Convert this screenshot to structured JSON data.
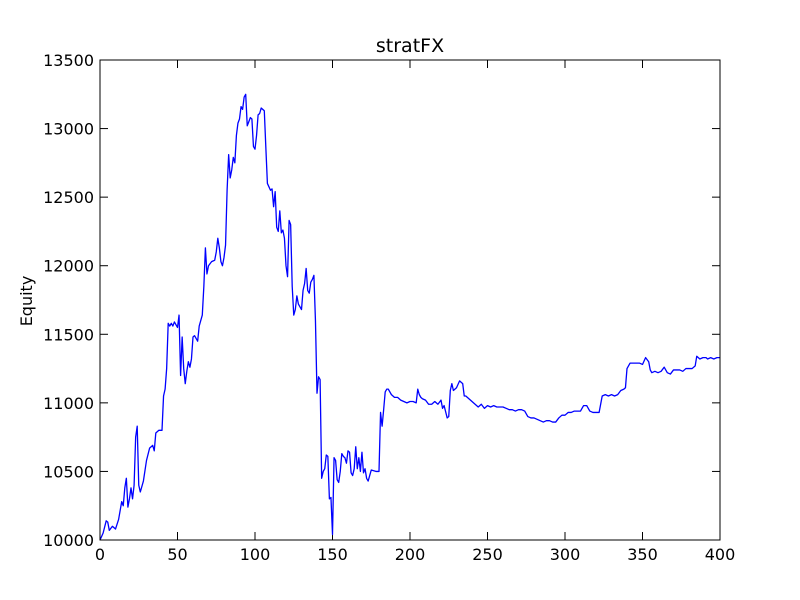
{
  "chart_data": {
    "type": "line",
    "title": "stratFX",
    "xlabel": "",
    "ylabel": "Equity",
    "xlim": [
      0,
      400
    ],
    "ylim": [
      10000,
      13500
    ],
    "grid": false,
    "x_ticks": [
      "0",
      "50",
      "100",
      "150",
      "200",
      "250",
      "300",
      "350",
      "400"
    ],
    "y_ticks": [
      "10000",
      "10500",
      "11000",
      "11500",
      "12000",
      "12500",
      "13000",
      "13500"
    ],
    "series": [
      {
        "color": "#0000ff",
        "points": [
          [
            0,
            10000
          ],
          [
            2,
            10050
          ],
          [
            4,
            10140
          ],
          [
            5,
            10130
          ],
          [
            6,
            10070
          ],
          [
            8,
            10100
          ],
          [
            10,
            10080
          ],
          [
            12,
            10150
          ],
          [
            14,
            10280
          ],
          [
            15,
            10250
          ],
          [
            16,
            10380
          ],
          [
            17,
            10450
          ],
          [
            18,
            10240
          ],
          [
            19,
            10300
          ],
          [
            20,
            10380
          ],
          [
            21,
            10300
          ],
          [
            22,
            10400
          ],
          [
            23,
            10750
          ],
          [
            24,
            10830
          ],
          [
            25,
            10400
          ],
          [
            26,
            10350
          ],
          [
            28,
            10430
          ],
          [
            30,
            10580
          ],
          [
            32,
            10670
          ],
          [
            34,
            10690
          ],
          [
            35,
            10650
          ],
          [
            36,
            10780
          ],
          [
            38,
            10800
          ],
          [
            40,
            10800
          ],
          [
            41,
            11050
          ],
          [
            42,
            11100
          ],
          [
            43,
            11250
          ],
          [
            44,
            11580
          ],
          [
            45,
            11560
          ],
          [
            46,
            11580
          ],
          [
            47,
            11560
          ],
          [
            48,
            11590
          ],
          [
            50,
            11550
          ],
          [
            51,
            11640
          ],
          [
            52,
            11200
          ],
          [
            53,
            11480
          ],
          [
            54,
            11250
          ],
          [
            55,
            11140
          ],
          [
            56,
            11230
          ],
          [
            57,
            11300
          ],
          [
            58,
            11260
          ],
          [
            59,
            11320
          ],
          [
            60,
            11480
          ],
          [
            61,
            11490
          ],
          [
            62,
            11470
          ],
          [
            63,
            11450
          ],
          [
            64,
            11560
          ],
          [
            66,
            11640
          ],
          [
            67,
            11850
          ],
          [
            68,
            12130
          ],
          [
            69,
            11940
          ],
          [
            70,
            12000
          ],
          [
            72,
            12030
          ],
          [
            74,
            12040
          ],
          [
            75,
            12100
          ],
          [
            76,
            12200
          ],
          [
            77,
            12130
          ],
          [
            78,
            12030
          ],
          [
            79,
            12000
          ],
          [
            80,
            12060
          ],
          [
            81,
            12150
          ],
          [
            82,
            12550
          ],
          [
            83,
            12810
          ],
          [
            84,
            12640
          ],
          [
            85,
            12700
          ],
          [
            86,
            12790
          ],
          [
            87,
            12750
          ],
          [
            88,
            12950
          ],
          [
            89,
            13040
          ],
          [
            90,
            13070
          ],
          [
            91,
            13160
          ],
          [
            92,
            13140
          ],
          [
            93,
            13230
          ],
          [
            94,
            13250
          ],
          [
            95,
            13020
          ],
          [
            96,
            13050
          ],
          [
            97,
            13080
          ],
          [
            98,
            13070
          ],
          [
            99,
            12870
          ],
          [
            100,
            12850
          ],
          [
            101,
            12950
          ],
          [
            102,
            13100
          ],
          [
            103,
            13110
          ],
          [
            104,
            13150
          ],
          [
            105,
            13140
          ],
          [
            106,
            13130
          ],
          [
            107,
            12860
          ],
          [
            108,
            12600
          ],
          [
            110,
            12550
          ],
          [
            111,
            12560
          ],
          [
            112,
            12430
          ],
          [
            113,
            12540
          ],
          [
            114,
            12280
          ],
          [
            115,
            12250
          ],
          [
            116,
            12400
          ],
          [
            117,
            12240
          ],
          [
            118,
            12260
          ],
          [
            119,
            12200
          ],
          [
            120,
            12000
          ],
          [
            121,
            11920
          ],
          [
            122,
            12330
          ],
          [
            123,
            12300
          ],
          [
            124,
            11850
          ],
          [
            125,
            11640
          ],
          [
            126,
            11680
          ],
          [
            127,
            11780
          ],
          [
            128,
            11720
          ],
          [
            129,
            11700
          ],
          [
            130,
            11680
          ],
          [
            131,
            11820
          ],
          [
            132,
            11870
          ],
          [
            133,
            11980
          ],
          [
            134,
            11820
          ],
          [
            135,
            11800
          ],
          [
            136,
            11880
          ],
          [
            137,
            11900
          ],
          [
            138,
            11930
          ],
          [
            139,
            11600
          ],
          [
            140,
            11070
          ],
          [
            141,
            11190
          ],
          [
            142,
            11170
          ],
          [
            143,
            10450
          ],
          [
            144,
            10500
          ],
          [
            145,
            10520
          ],
          [
            146,
            10620
          ],
          [
            147,
            10610
          ],
          [
            148,
            10300
          ],
          [
            149,
            10310
          ],
          [
            150,
            10040
          ],
          [
            151,
            10600
          ],
          [
            152,
            10580
          ],
          [
            153,
            10440
          ],
          [
            154,
            10420
          ],
          [
            155,
            10500
          ],
          [
            156,
            10630
          ],
          [
            157,
            10610
          ],
          [
            158,
            10600
          ],
          [
            159,
            10560
          ],
          [
            160,
            10650
          ],
          [
            161,
            10640
          ],
          [
            162,
            10490
          ],
          [
            163,
            10470
          ],
          [
            164,
            10520
          ],
          [
            165,
            10680
          ],
          [
            166,
            10520
          ],
          [
            167,
            10600
          ],
          [
            168,
            10500
          ],
          [
            169,
            10640
          ],
          [
            170,
            10490
          ],
          [
            171,
            10520
          ],
          [
            172,
            10450
          ],
          [
            173,
            10430
          ],
          [
            174,
            10470
          ],
          [
            175,
            10510
          ],
          [
            178,
            10500
          ],
          [
            180,
            10500
          ],
          [
            181,
            10930
          ],
          [
            182,
            10830
          ],
          [
            183,
            10950
          ],
          [
            184,
            11080
          ],
          [
            185,
            11100
          ],
          [
            186,
            11100
          ],
          [
            188,
            11060
          ],
          [
            190,
            11040
          ],
          [
            192,
            11040
          ],
          [
            194,
            11020
          ],
          [
            196,
            11010
          ],
          [
            198,
            11000
          ],
          [
            200,
            11010
          ],
          [
            202,
            11010
          ],
          [
            204,
            11000
          ],
          [
            205,
            11100
          ],
          [
            206,
            11060
          ],
          [
            207,
            11040
          ],
          [
            208,
            11030
          ],
          [
            210,
            11020
          ],
          [
            212,
            10990
          ],
          [
            214,
            10990
          ],
          [
            216,
            11010
          ],
          [
            218,
            10990
          ],
          [
            220,
            11020
          ],
          [
            221,
            10960
          ],
          [
            222,
            10980
          ],
          [
            224,
            10890
          ],
          [
            225,
            10900
          ],
          [
            226,
            11090
          ],
          [
            227,
            11140
          ],
          [
            228,
            11090
          ],
          [
            229,
            11100
          ],
          [
            230,
            11110
          ],
          [
            232,
            11160
          ],
          [
            234,
            11140
          ],
          [
            235,
            11050
          ],
          [
            236,
            11050
          ],
          [
            238,
            11030
          ],
          [
            240,
            11010
          ],
          [
            242,
            10990
          ],
          [
            244,
            10970
          ],
          [
            246,
            10990
          ],
          [
            248,
            10960
          ],
          [
            250,
            10980
          ],
          [
            252,
            10970
          ],
          [
            254,
            10980
          ],
          [
            256,
            10970
          ],
          [
            258,
            10970
          ],
          [
            260,
            10970
          ],
          [
            262,
            10960
          ],
          [
            264,
            10950
          ],
          [
            266,
            10950
          ],
          [
            268,
            10940
          ],
          [
            270,
            10950
          ],
          [
            272,
            10950
          ],
          [
            274,
            10940
          ],
          [
            276,
            10900
          ],
          [
            278,
            10890
          ],
          [
            280,
            10890
          ],
          [
            282,
            10880
          ],
          [
            284,
            10870
          ],
          [
            286,
            10860
          ],
          [
            288,
            10870
          ],
          [
            290,
            10870
          ],
          [
            292,
            10860
          ],
          [
            294,
            10860
          ],
          [
            296,
            10890
          ],
          [
            298,
            10910
          ],
          [
            300,
            10910
          ],
          [
            302,
            10930
          ],
          [
            304,
            10930
          ],
          [
            306,
            10940
          ],
          [
            308,
            10940
          ],
          [
            310,
            10940
          ],
          [
            312,
            10980
          ],
          [
            314,
            10980
          ],
          [
            316,
            10940
          ],
          [
            318,
            10930
          ],
          [
            320,
            10930
          ],
          [
            322,
            10930
          ],
          [
            324,
            11050
          ],
          [
            326,
            11060
          ],
          [
            328,
            11050
          ],
          [
            330,
            11060
          ],
          [
            332,
            11050
          ],
          [
            334,
            11060
          ],
          [
            336,
            11090
          ],
          [
            338,
            11100
          ],
          [
            339,
            11110
          ],
          [
            340,
            11250
          ],
          [
            342,
            11290
          ],
          [
            344,
            11290
          ],
          [
            346,
            11290
          ],
          [
            348,
            11290
          ],
          [
            350,
            11280
          ],
          [
            352,
            11330
          ],
          [
            354,
            11300
          ],
          [
            355,
            11240
          ],
          [
            356,
            11220
          ],
          [
            358,
            11230
          ],
          [
            360,
            11220
          ],
          [
            362,
            11230
          ],
          [
            364,
            11260
          ],
          [
            366,
            11220
          ],
          [
            368,
            11210
          ],
          [
            370,
            11240
          ],
          [
            372,
            11240
          ],
          [
            374,
            11240
          ],
          [
            376,
            11230
          ],
          [
            378,
            11250
          ],
          [
            380,
            11250
          ],
          [
            382,
            11250
          ],
          [
            384,
            11270
          ],
          [
            385,
            11340
          ],
          [
            387,
            11320
          ],
          [
            389,
            11330
          ],
          [
            391,
            11330
          ],
          [
            392,
            11320
          ],
          [
            394,
            11330
          ],
          [
            396,
            11320
          ],
          [
            398,
            11330
          ],
          [
            400,
            11330
          ]
        ]
      }
    ]
  }
}
